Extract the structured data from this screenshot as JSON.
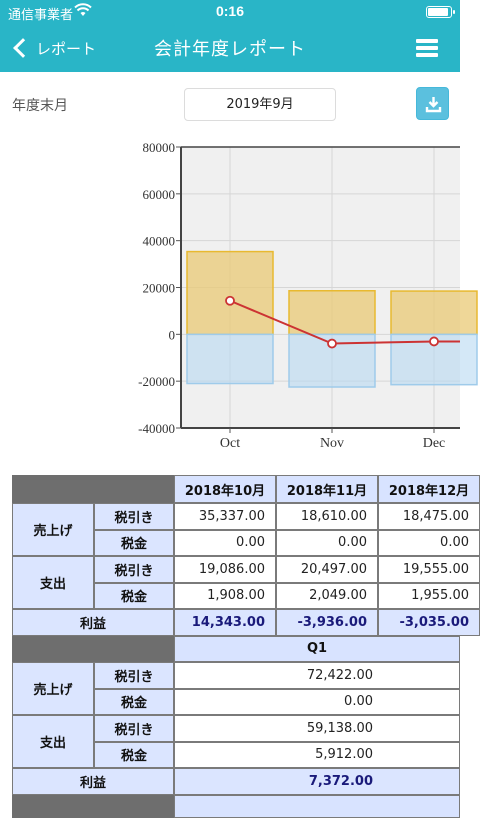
{
  "status": {
    "carrier": "通信事業者",
    "time": "0:16"
  },
  "nav": {
    "back_label": "レポート",
    "title": "会計年度レポート"
  },
  "filter": {
    "label": "年度末月",
    "value": "2019年9月"
  },
  "colors": {
    "accent": "#29b5c7",
    "income": "#e9c976",
    "expense": "#b7d8f2",
    "profit_line": "#cc3333",
    "download": "#5bc0de"
  },
  "icons": {
    "download": "download-icon",
    "menu": "hamburger-menu-icon",
    "back": "chevron-left-icon"
  },
  "chart_data": {
    "type": "bar",
    "categories": [
      "Oct",
      "Nov",
      "Dec"
    ],
    "series": [
      {
        "values": [
          35337,
          18610,
          18475
        ]
      },
      {
        "values": [
          -21000,
          -22500,
          -21500
        ]
      },
      {
        "values": [
          14343,
          -3936,
          -3035
        ]
      }
    ],
    "yticks": [
      "80000",
      "60000",
      "40000",
      "20000",
      "0",
      "-20000",
      "-40000"
    ],
    "ylim": [
      -40000,
      80000
    ],
    "grid": true
  },
  "table": {
    "months": [
      "2018年10月",
      "2018年11月",
      "2018年12月"
    ],
    "sales_label": "売上げ",
    "expense_label": "支出",
    "pretax_label": "税引き",
    "tax_label": "税金",
    "profit_label": "利益",
    "sales_pretax": [
      "35,337.00",
      "18,610.00",
      "18,475.00"
    ],
    "sales_tax": [
      "0.00",
      "0.00",
      "0.00"
    ],
    "expense_pretax": [
      "19,086.00",
      "20,497.00",
      "19,555.00"
    ],
    "expense_tax": [
      "1,908.00",
      "2,049.00",
      "1,955.00"
    ],
    "profit": [
      "14,343.00",
      "-3,936.00",
      "-3,035.00"
    ],
    "quarter": {
      "label": "Q1",
      "sales_pretax": "72,422.00",
      "sales_tax": "0.00",
      "expense_pretax": "59,138.00",
      "expense_tax": "5,912.00",
      "profit": "7,372.00"
    }
  }
}
